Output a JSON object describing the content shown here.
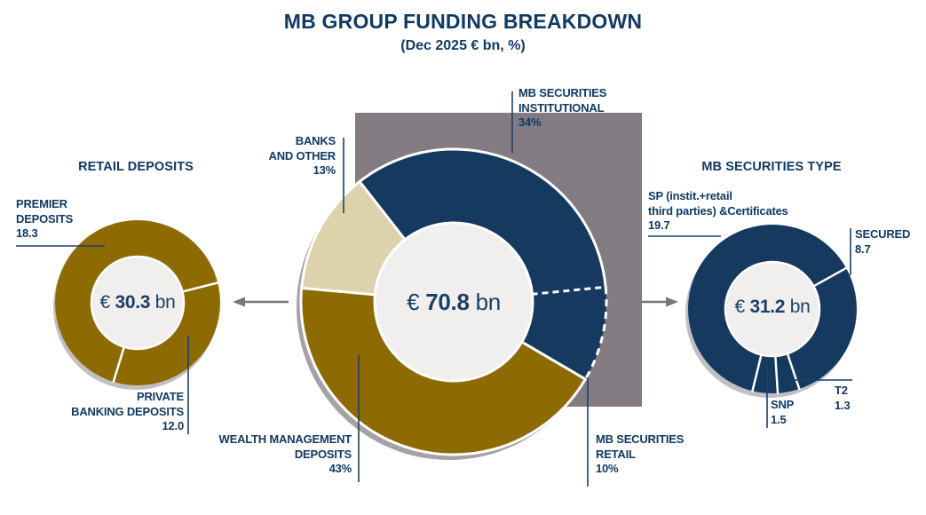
{
  "title": "MB GROUP FUNDING BREAKDOWN",
  "subtitle": "(Dec 2025 € bn, %)",
  "section_titles": {
    "left": "RETAIL DEPOSITS",
    "right": "MB SECURITIES TYPE"
  },
  "centers": {
    "main": {
      "prefix": "€",
      "number": "70.8",
      "unit": "bn"
    },
    "left": {
      "prefix": "€",
      "number": "30.3",
      "unit": "bn"
    },
    "right": {
      "prefix": "€",
      "number": "31.2",
      "unit": "bn"
    }
  },
  "callouts": {
    "institutional": {
      "name": "MB SECURITIES\nINSTITUTIONAL",
      "value": "34%"
    },
    "banks": {
      "name": "BANKS\nAND OTHER",
      "value": "13%"
    },
    "wealth": {
      "name": "WEALTH MANAGEMENT\nDEPOSITS",
      "value": "43%"
    },
    "retail": {
      "name": "MB SECURITIES\nRETAIL",
      "value": "10%"
    },
    "premier": {
      "name": "PREMIER\nDEPOSITS",
      "value": "18.3"
    },
    "private": {
      "name": "PRIVATE\nBANKING DEPOSITS",
      "value": "12.0"
    },
    "sp": {
      "name": "SP (instit.+retail\nthird parties) &Certificates",
      "value": "19.7"
    },
    "secured": {
      "name": "SECURED",
      "value": "8.7"
    },
    "t2": {
      "name": "T2",
      "value": "1.3"
    },
    "snp": {
      "name": "SNP",
      "value": "1.5"
    }
  },
  "chart_data": [
    {
      "type": "pie",
      "variant": "donut",
      "id": "retail-deposits",
      "title": "RETAIL DEPOSITS",
      "center_value": "€ 30.3 bn",
      "total_eur_bn": 30.3,
      "slices": [
        {
          "label": "PREMIER DEPOSITS",
          "value": 18.3
        },
        {
          "label": "PRIVATE BANKING DEPOSITS",
          "value": 12.0
        }
      ],
      "layout": {
        "ring_color": "gold",
        "separator_angles_deg": [
          76,
          197
        ],
        "legend": "callout-labels"
      }
    },
    {
      "type": "pie",
      "variant": "donut",
      "id": "group-funding",
      "title": "MB GROUP FUNDING BREAKDOWN",
      "center_value": "€ 70.8 bn",
      "total_eur_bn": 70.8,
      "unit": "%",
      "slices": [
        {
          "label": "MB SECURITIES INSTITUTIONAL",
          "value": 34,
          "color": "navy"
        },
        {
          "label": "MB SECURITIES RETAIL",
          "value": 10,
          "color": "navy",
          "dashed_boundary": true
        },
        {
          "label": "WEALTH MANAGEMENT DEPOSITS",
          "value": 43,
          "color": "gold"
        },
        {
          "label": "BANKS AND OTHER",
          "value": 13,
          "color": "beige"
        }
      ],
      "layout": {
        "start_angle_deg": -38,
        "legend": "callout-labels"
      }
    },
    {
      "type": "pie",
      "variant": "donut",
      "id": "mb-securities-type",
      "title": "MB SECURITIES TYPE",
      "center_value": "€ 31.2 bn",
      "total_eur_bn": 31.2,
      "slices": [
        {
          "label": "SECURED",
          "value": 8.7
        },
        {
          "label": "T2",
          "value": 1.3
        },
        {
          "label": "SNP",
          "value": 1.5
        },
        {
          "label": "SP (instit.+retail third parties) &Certificates",
          "value": 19.7
        }
      ],
      "layout": {
        "ring_color": "navy",
        "start_angle_deg": 61,
        "legend": "callout-labels"
      }
    }
  ],
  "colors": {
    "navy": "#16395f",
    "gold": "#8e6b02",
    "beige": "#ddd2ab",
    "background_square": "#827c82",
    "shadow": "#a5a1a5",
    "side_shadow": "#c2bfc2",
    "inner_circle": "#f0efee",
    "text": "#123a61",
    "leader": "#1b4066",
    "arrow": "#7b757b",
    "separator": "#ffffff"
  }
}
